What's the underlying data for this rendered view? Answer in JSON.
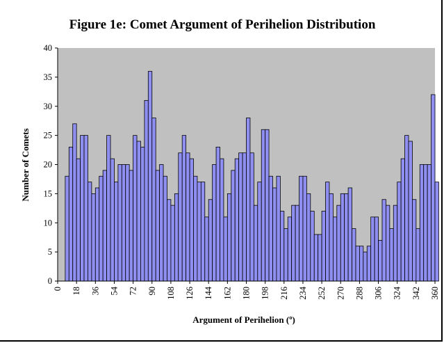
{
  "chart_data": {
    "type": "bar",
    "title": "Figure 1e:  Comet Argument of Perihelion Distribution",
    "xlabel": "Argument of Perihelion (º)",
    "ylabel": "Number of Comets",
    "ylim": [
      0,
      40
    ],
    "yticks": [
      "0",
      "5",
      "10",
      "15",
      "20",
      "25",
      "30",
      "35",
      "40"
    ],
    "xticks": [
      "0",
      "18",
      "36",
      "54",
      "72",
      "90",
      "108",
      "126",
      "144",
      "162",
      "180",
      "198",
      "216",
      "234",
      "252",
      "270",
      "288",
      "306",
      "324",
      "342",
      "360"
    ],
    "xlim": [
      0,
      360
    ],
    "bin_width": 3.6,
    "bin_start": 0,
    "colors": {
      "bar": "#8f8ff2",
      "plot_bg": "#c0c0c0"
    },
    "values": [
      0,
      0,
      18,
      23,
      27,
      21,
      25,
      25,
      17,
      15,
      16,
      18,
      19,
      25,
      21,
      17,
      20,
      20,
      20,
      19,
      25,
      24,
      23,
      31,
      36,
      28,
      19,
      20,
      18,
      14,
      13,
      15,
      22,
      25,
      22,
      21,
      18,
      17,
      17,
      11,
      14,
      20,
      23,
      21,
      11,
      15,
      19,
      21,
      22,
      22,
      28,
      22,
      13,
      17,
      26,
      26,
      18,
      16,
      18,
      12,
      9,
      11,
      13,
      13,
      18,
      18,
      15,
      12,
      8,
      8,
      12,
      17,
      15,
      11,
      13,
      15,
      15,
      16,
      9,
      6,
      6,
      5,
      6,
      11,
      11,
      7,
      14,
      13,
      9,
      13,
      17,
      21,
      25,
      24,
      14,
      9,
      20,
      20,
      20,
      32,
      17
    ]
  }
}
